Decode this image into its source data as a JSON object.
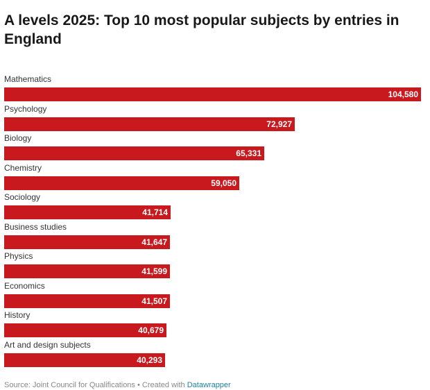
{
  "chart_data": {
    "type": "bar",
    "orientation": "horizontal",
    "title": "A levels 2025: Top 10 most popular subjects by entries in England",
    "categories": [
      "Mathematics",
      "Psychology",
      "Biology",
      "Chemistry",
      "Sociology",
      "Business studies",
      "Physics",
      "Economics",
      "History",
      "Art and design subjects"
    ],
    "values": [
      104580,
      72927,
      65331,
      59050,
      41714,
      41647,
      41599,
      41507,
      40679,
      40293
    ],
    "value_labels": [
      "104,580",
      "72,927",
      "65,331",
      "59,050",
      "41,714",
      "41,647",
      "41,599",
      "41,507",
      "40,679",
      "40,293"
    ],
    "xlim": [
      0,
      104580
    ],
    "xlabel": "",
    "ylabel": "",
    "grid": false,
    "bar_color": "#c8191e"
  },
  "footer": {
    "source": "Source: Joint Council for Qualifications",
    "separator": " • ",
    "created_with": "Created with",
    "tool": "Datawrapper"
  }
}
